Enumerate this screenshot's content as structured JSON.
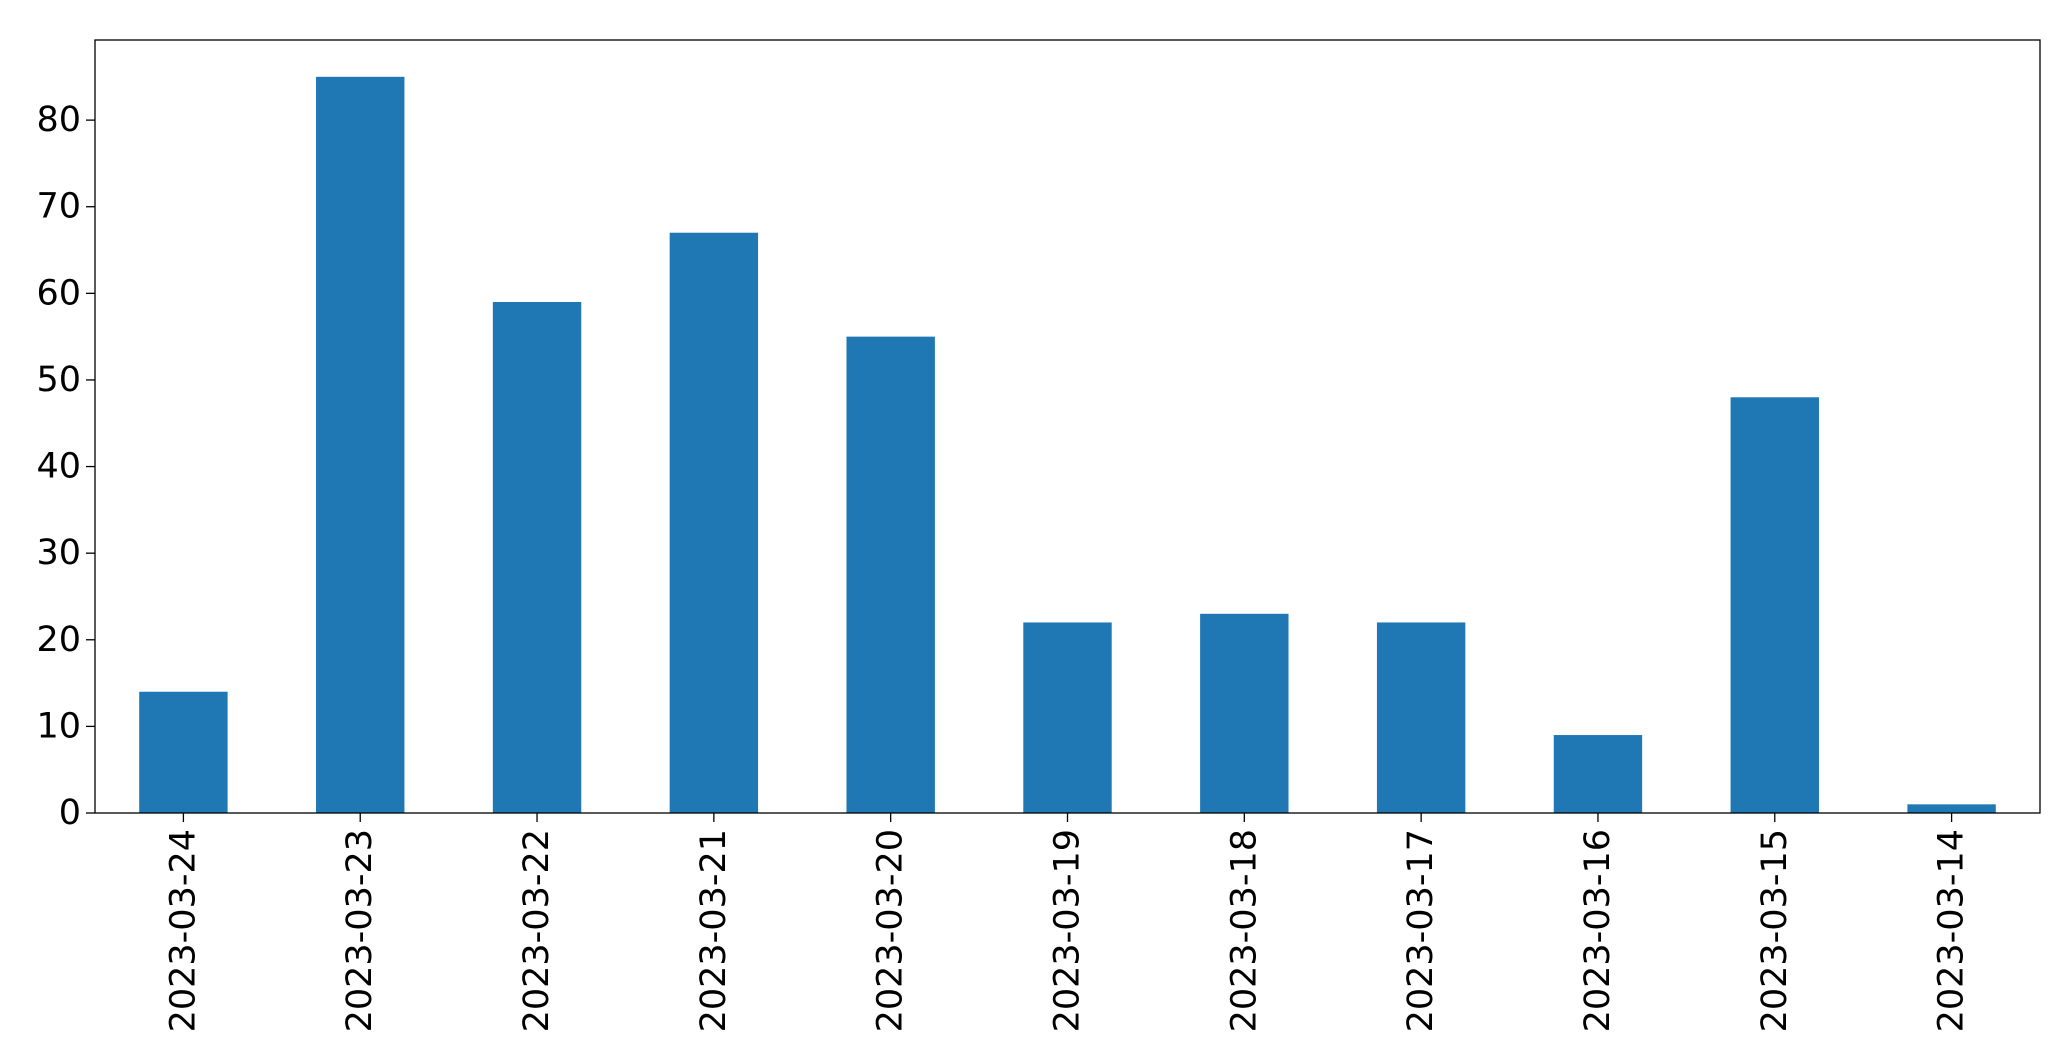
{
  "chart_data": {
    "type": "bar",
    "categories": [
      "2023-03-24",
      "2023-03-23",
      "2023-03-22",
      "2023-03-21",
      "2023-03-20",
      "2023-03-19",
      "2023-03-18",
      "2023-03-17",
      "2023-03-16",
      "2023-03-15",
      "2023-03-14"
    ],
    "values": [
      14,
      85,
      59,
      67,
      55,
      22,
      23,
      22,
      9,
      48,
      1
    ],
    "title": "",
    "xlabel": "",
    "ylabel": "",
    "ylim": [
      0,
      89.25
    ],
    "yticks": [
      0,
      10,
      20,
      30,
      40,
      50,
      60,
      70,
      80
    ],
    "grid": false,
    "legend": "none",
    "bar_color": "#1f77b4"
  }
}
